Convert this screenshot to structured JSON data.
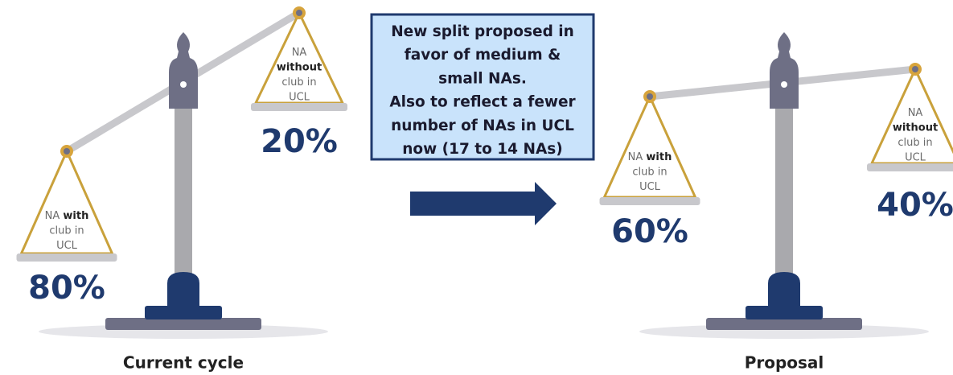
{
  "scales": [
    {
      "caption": "Current cycle",
      "pans": [
        {
          "lines": [
            [
              {
                "text": "NA "
              },
              {
                "text": "with",
                "bold": true
              }
            ],
            [
              {
                "text": "club in"
              }
            ],
            [
              {
                "text": "UCL"
              }
            ]
          ],
          "share": "80%"
        },
        {
          "lines": [
            [
              {
                "text": "NA"
              }
            ],
            [
              {
                "text": "without",
                "bold": true
              }
            ],
            [
              {
                "text": "club in"
              }
            ],
            [
              {
                "text": "UCL"
              }
            ]
          ],
          "share": "20%"
        }
      ]
    },
    {
      "caption": "Proposal",
      "pans": [
        {
          "lines": [
            [
              {
                "text": "NA "
              },
              {
                "text": "with",
                "bold": true
              }
            ],
            [
              {
                "text": "club in"
              }
            ],
            [
              {
                "text": "UCL"
              }
            ]
          ],
          "share": "60%"
        },
        {
          "lines": [
            [
              {
                "text": "NA"
              }
            ],
            [
              {
                "text": "without",
                "bold": true
              }
            ],
            [
              {
                "text": "club in"
              }
            ],
            [
              {
                "text": "UCL"
              }
            ]
          ],
          "share": "40%"
        }
      ]
    }
  ],
  "note": {
    "lines": [
      "New split proposed in",
      "favor of medium &",
      "small NAs.",
      "Also to reflect a fewer",
      "number of NAs in UCL",
      "now (17 to 14 NAs)"
    ]
  }
}
